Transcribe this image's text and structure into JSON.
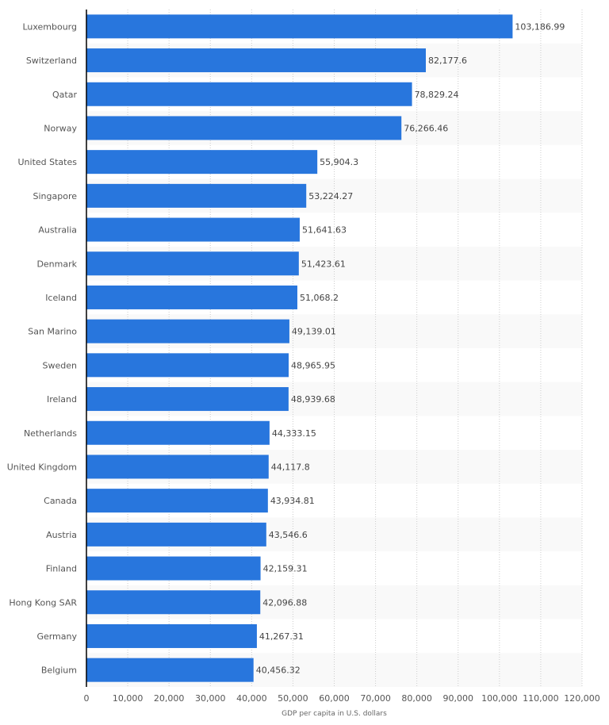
{
  "chart_data": {
    "type": "bar",
    "orientation": "horizontal",
    "title": "",
    "xlabel": "GDP per capita in U.S. dollars",
    "ylabel": "",
    "xlim": [
      0,
      120000
    ],
    "x_ticks": [
      0,
      10000,
      20000,
      30000,
      40000,
      50000,
      60000,
      70000,
      80000,
      90000,
      100000,
      110000,
      120000
    ],
    "x_tick_labels": [
      "0",
      "10,000",
      "20,000",
      "30,000",
      "40,000",
      "50,000",
      "60,000",
      "70,000",
      "80,000",
      "90,000",
      "100,000",
      "110,000",
      "120,000"
    ],
    "grid": true,
    "categories": [
      "Luxembourg",
      "Switzerland",
      "Qatar",
      "Norway",
      "United States",
      "Singapore",
      "Australia",
      "Denmark",
      "Iceland",
      "San Marino",
      "Sweden",
      "Ireland",
      "Netherlands",
      "United Kingdom",
      "Canada",
      "Austria",
      "Finland",
      "Hong Kong SAR",
      "Germany",
      "Belgium"
    ],
    "values": [
      103186.99,
      82177.6,
      78829.24,
      76266.46,
      55904.3,
      53224.27,
      51641.63,
      51423.61,
      51068.2,
      49139.01,
      48965.95,
      48939.68,
      44333.15,
      44117.8,
      43934.81,
      43546.6,
      42159.31,
      42096.88,
      41267.31,
      40456.32
    ],
    "value_labels": [
      "103,186.99",
      "82,177.6",
      "78,829.24",
      "76,266.46",
      "55,904.3",
      "53,224.27",
      "51,641.63",
      "51,423.61",
      "51,068.2",
      "49,139.01",
      "48,965.95",
      "48,939.68",
      "44,333.15",
      "44,117.8",
      "43,934.81",
      "43,546.6",
      "42,159.31",
      "42,096.88",
      "41,267.31",
      "40,456.32"
    ],
    "colors": {
      "bar": "#2876dd",
      "band": "#f9f9f9",
      "grid": "#cccccc",
      "axis": "#000000"
    }
  }
}
